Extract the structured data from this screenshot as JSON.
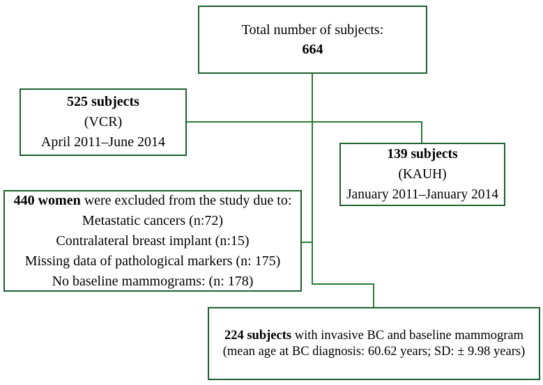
{
  "diagram": {
    "type": "flowchart",
    "colors": {
      "box_border": "#1e5f2e",
      "connector_line": "#2d7a33",
      "text": "#000000",
      "background": "#ffffff"
    },
    "boxes": {
      "total": {
        "line1": "Total number of subjects:",
        "count": "664"
      },
      "vcr": {
        "count": "525 subjects",
        "source": "(VCR)",
        "period": "April 2011–June 2014"
      },
      "kauh": {
        "count": "139 subjects",
        "source": "(KAUH)",
        "period": "January 2011–January 2014"
      },
      "excluded": {
        "count": "440 women",
        "intro_rest": " were excluded from the study due to:",
        "reasons": [
          "Metastatic cancers (n:72)",
          "Contralateral breast implant (n:15)",
          "Missing data of pathological markers (n: 175)",
          "No baseline mammograms: (n: 178)"
        ]
      },
      "final": {
        "count": "224 subjects",
        "description_rest": " with invasive BC and baseline mammogram",
        "details": "(mean age at BC diagnosis: 60.62 years; SD: ± 9.98 years)"
      }
    }
  }
}
